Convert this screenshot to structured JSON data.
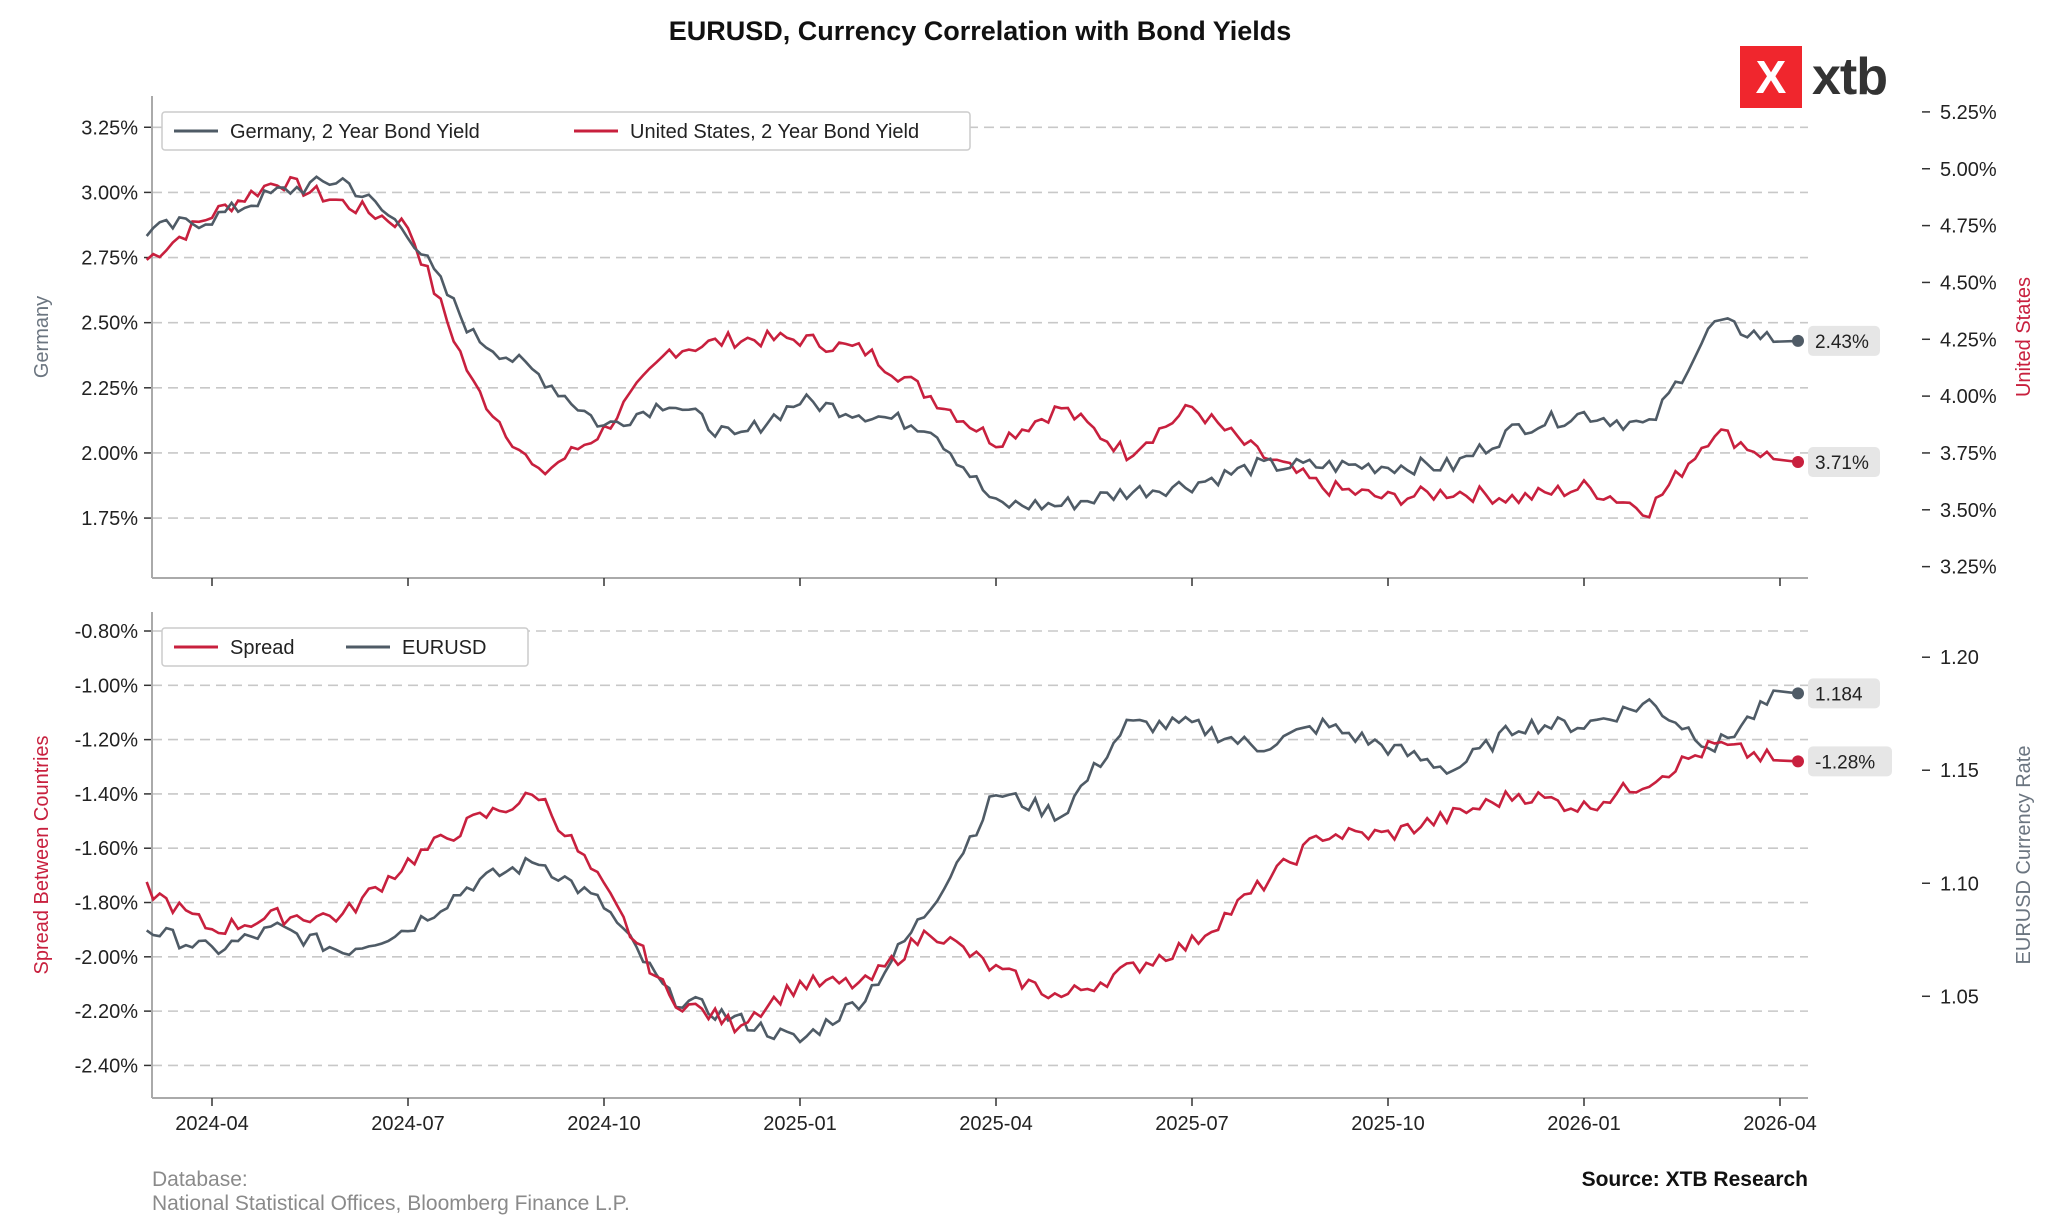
{
  "title": "EURUSD, Currency Correlation with Bond Yields",
  "logo": {
    "mark": "X",
    "text": "xtb",
    "color": "#f0262d"
  },
  "footer": {
    "database_label": "Database:",
    "database_sources": "National Statistical Offices, Bloomberg Finance L.P.",
    "source": "Source: XTB Research"
  },
  "colors": {
    "germany": "#4f5b66",
    "us": "#c8203e",
    "spread": "#c8203e",
    "eurusd": "#4f5b66"
  },
  "chart_data": [
    {
      "type": "line",
      "panel": "top",
      "ylabel_left": "Germany",
      "ylabel_right": "United States",
      "legend": [
        "Germany, 2 Year Bond Yield",
        "United States, 2 Year Bond Yield"
      ],
      "legend_position": "top-left",
      "yticks_left": [
        "3.25%",
        "3.00%",
        "2.75%",
        "2.50%",
        "2.25%",
        "2.00%",
        "1.75%"
      ],
      "yticks_right": [
        "5.25%",
        "5.00%",
        "4.75%",
        "4.50%",
        "4.25%",
        "4.00%",
        "3.75%",
        "3.50%",
        "3.25%"
      ],
      "ylim_left": [
        1.52,
        3.37
      ],
      "ylim_right": [
        3.2,
        5.32
      ],
      "grid": true,
      "x_dates": [
        "2024-03",
        "2024-04",
        "2024-05",
        "2024-06",
        "2024-07",
        "2024-08",
        "2024-09",
        "2024-10",
        "2024-11",
        "2024-12",
        "2025-01",
        "2025-02",
        "2025-03",
        "2025-04",
        "2025-05",
        "2025-06",
        "2025-07",
        "2025-08",
        "2025-09",
        "2025-10",
        "2025-11",
        "2025-12",
        "2026-01",
        "2026-02",
        "2026-03",
        "2026-04"
      ],
      "series": [
        {
          "name": "Germany, 2 Year Bond Yield",
          "axis": "left",
          "values": [
            2.85,
            2.9,
            3.0,
            3.05,
            2.85,
            2.45,
            2.3,
            2.1,
            2.2,
            2.05,
            2.2,
            2.15,
            2.1,
            1.8,
            1.8,
            1.85,
            1.88,
            1.95,
            1.95,
            1.95,
            1.95,
            2.1,
            2.15,
            2.1,
            2.5,
            2.43
          ],
          "last_label": "2.43%"
        },
        {
          "name": "United States, 2 Year Bond Yield",
          "axis": "right",
          "values": [
            4.6,
            4.8,
            4.95,
            4.85,
            4.75,
            4.05,
            3.65,
            3.85,
            4.2,
            4.25,
            4.25,
            4.2,
            4.0,
            3.8,
            3.95,
            3.75,
            3.95,
            3.75,
            3.6,
            3.55,
            3.58,
            3.55,
            3.6,
            3.5,
            3.85,
            3.71
          ],
          "last_label": "3.71%"
        }
      ]
    },
    {
      "type": "line",
      "panel": "bottom",
      "ylabel_left": "Spread Between Countries",
      "ylabel_right": "EURUSD Currency Rate",
      "legend": [
        "Spread",
        "EURUSD"
      ],
      "legend_position": "top-left",
      "yticks_left": [
        "-0.80%",
        "-1.00%",
        "-1.20%",
        "-1.40%",
        "-1.60%",
        "-1.80%",
        "-2.00%",
        "-2.20%",
        "-2.40%"
      ],
      "yticks_right": [
        "1.20",
        "1.15",
        "1.10",
        "1.05"
      ],
      "ylim_left": [
        -2.52,
        -0.73
      ],
      "ylim_right": [
        1.005,
        1.22
      ],
      "grid": true,
      "xticks": [
        "2024-04",
        "2024-07",
        "2024-10",
        "2025-01",
        "2025-04",
        "2025-07",
        "2025-10",
        "2026-01",
        "2026-04"
      ],
      "series": [
        {
          "name": "Spread",
          "axis": "left",
          "values": [
            -1.75,
            -1.9,
            -1.85,
            -1.85,
            -1.65,
            -1.5,
            -1.4,
            -1.75,
            -2.15,
            -2.25,
            -2.1,
            -2.1,
            -1.9,
            -2.05,
            -2.15,
            -2.05,
            -1.95,
            -1.75,
            -1.55,
            -1.55,
            -1.48,
            -1.4,
            -1.45,
            -1.35,
            -1.22,
            -1.28
          ],
          "last_label": "-1.28%"
        },
        {
          "name": "EURUSD",
          "axis": "right",
          "values": [
            1.08,
            1.07,
            1.08,
            1.07,
            1.08,
            1.1,
            1.11,
            1.09,
            1.05,
            1.04,
            1.03,
            1.05,
            1.09,
            1.14,
            1.13,
            1.17,
            1.17,
            1.16,
            1.17,
            1.16,
            1.15,
            1.17,
            1.17,
            1.18,
            1.16,
            1.184
          ],
          "last_label": "1.184"
        }
      ]
    }
  ]
}
